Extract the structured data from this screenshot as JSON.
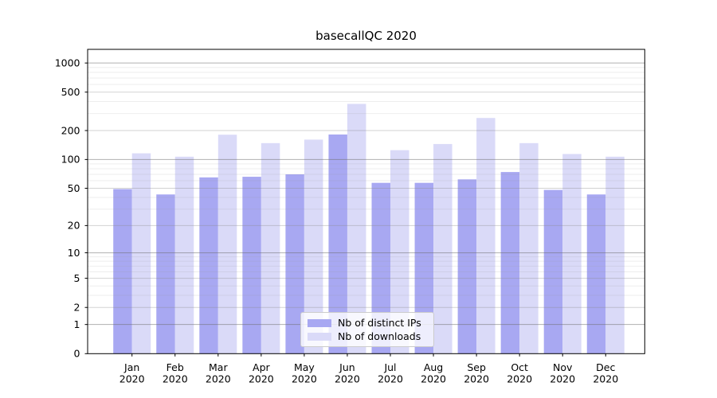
{
  "title": "basecallQC 2020",
  "legend": [
    {
      "label": "Nb of distinct IPs",
      "color": "#a8a8f2"
    },
    {
      "label": "Nb of downloads",
      "color": "#dadaf8"
    }
  ],
  "chart_data": {
    "type": "bar",
    "title": "basecallQC 2020",
    "categories": [
      "Jan",
      "Feb",
      "Mar",
      "Apr",
      "May",
      "Jun",
      "Jul",
      "Aug",
      "Sep",
      "Oct",
      "Nov",
      "Dec"
    ],
    "year": "2020",
    "series": [
      {
        "name": "Nb of distinct IPs",
        "color": "#a8a8f2",
        "values": [
          49,
          43,
          65,
          66,
          70,
          182,
          57,
          57,
          62,
          74,
          48,
          43
        ]
      },
      {
        "name": "Nb of downloads",
        "color": "#dadaf8",
        "values": [
          116,
          107,
          181,
          148,
          161,
          378,
          125,
          145,
          270,
          148,
          114,
          107
        ]
      }
    ],
    "yscale": "log1p",
    "yticks": [
      0,
      1,
      2,
      5,
      10,
      20,
      50,
      100,
      200,
      500,
      1000
    ],
    "ylim": [
      0,
      1400
    ],
    "grid": true,
    "grid_on_top_of_bars": true,
    "legend_position": "lower-center"
  }
}
